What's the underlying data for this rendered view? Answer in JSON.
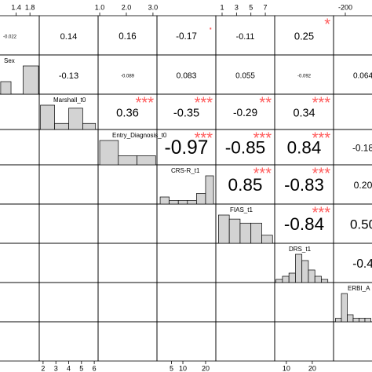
{
  "chart_data": {
    "type": "correlation_matrix",
    "variables": [
      {
        "name": "Sex",
        "xlim": [
          0.36,
          2.07
        ],
        "xticks": [
          1.4,
          1.8
        ],
        "bins": [
          0.95,
          1.25,
          1.6,
          2.05
        ],
        "counts": [
          4,
          0,
          9
        ]
      },
      {
        "name": "Marshall_t0",
        "xlim": [
          1.7,
          6.3
        ],
        "xticks": [
          2,
          3,
          4,
          5,
          6
        ],
        "bins": [
          1.8,
          2.9,
          4,
          5.1,
          6.1
        ],
        "counts": [
          8,
          2,
          7,
          2
        ]
      },
      {
        "name": "Entry_Diagnosis_t0",
        "xlim": [
          0.94,
          3.15
        ],
        "xticks": [
          {
            "value": 1,
            "label": "1.0"
          },
          {
            "value": 2,
            "label": "2.0"
          },
          {
            "value": 3,
            "label": "3.0"
          }
        ],
        "bins": [
          1,
          1.7,
          2.4,
          3.1
        ],
        "counts": [
          8,
          3,
          3
        ]
      },
      {
        "name": "CRS-R_t1",
        "xlim": [
          -1.4,
          24.5
        ],
        "xticks": [
          5,
          10,
          20
        ],
        "bins": [
          0,
          4,
          8,
          12,
          16,
          20,
          23.5
        ],
        "counts": [
          2,
          1,
          1,
          1,
          3,
          8
        ]
      },
      {
        "name": "FIAS_t1",
        "xlim": [
          0.13,
          8.3
        ],
        "xticks": [
          1,
          3,
          5,
          7
        ],
        "bins": [
          0.5,
          2,
          3.5,
          5,
          6.5,
          8
        ],
        "counts": [
          7,
          6,
          5,
          5,
          2
        ]
      },
      {
        "name": "DRS_t1",
        "xlim": [
          5.5,
          28.2
        ],
        "xticks": [
          10,
          20
        ],
        "bins": [
          6,
          8.5,
          11,
          13.5,
          16,
          18.5,
          21,
          23.5,
          26
        ],
        "counts": [
          1,
          2,
          3,
          9,
          7,
          4,
          2,
          1
        ]
      },
      {
        "name": "ERBI_A",
        "xlim": [
          -260,
          40
        ],
        "xticks": [
          -200
        ],
        "bins": [
          -250,
          -220,
          -190,
          -160,
          -130,
          -100,
          -70
        ],
        "counts": [
          1,
          8,
          2,
          1,
          1,
          1
        ]
      }
    ],
    "correlations": [
      [
        -0.022,
        0.14,
        0.16,
        -0.17,
        -0.11,
        0.25,
        null
      ],
      [
        null,
        -0.13,
        -0.089,
        0.083,
        0.055,
        -0.092,
        0.064
      ],
      [
        null,
        null,
        0.36,
        -0.35,
        -0.29,
        0.34,
        null
      ],
      [
        null,
        null,
        null,
        -0.97,
        -0.85,
        0.84,
        -0.18
      ],
      [
        null,
        null,
        null,
        null,
        0.85,
        -0.83,
        0.2
      ],
      [
        null,
        null,
        null,
        null,
        null,
        -0.84,
        0.5
      ],
      [
        null,
        null,
        null,
        null,
        null,
        null,
        -0.4
      ]
    ],
    "value_labels": [
      [
        null,
        null,
        null,
        null,
        null,
        null,
        null
      ],
      [
        null,
        null,
        null,
        null,
        null,
        null,
        null
      ],
      [
        null,
        null,
        null,
        null,
        null,
        null,
        null
      ],
      [
        null,
        null,
        null,
        null,
        null,
        null,
        null
      ],
      [
        null,
        null,
        null,
        null,
        null,
        null,
        "0.20"
      ],
      [
        null,
        null,
        null,
        null,
        null,
        null,
        "0.50"
      ],
      [
        null,
        null,
        null,
        null,
        null,
        null,
        null
      ]
    ],
    "stars": [
      [
        null,
        null,
        null,
        ".",
        null,
        "*",
        null
      ],
      [
        null,
        null,
        null,
        null,
        null,
        null,
        null
      ],
      [
        null,
        null,
        "***",
        "***",
        "**",
        "***",
        null
      ],
      [
        null,
        null,
        null,
        "***",
        "***",
        "***",
        null
      ],
      [
        null,
        null,
        null,
        null,
        "***",
        "***",
        null
      ],
      [
        null,
        null,
        null,
        null,
        null,
        "***",
        null
      ],
      [
        null,
        null,
        null,
        null,
        null,
        null,
        null
      ]
    ],
    "star_color": "#ff5a5a",
    "bar_color": "#d3d3d3"
  }
}
